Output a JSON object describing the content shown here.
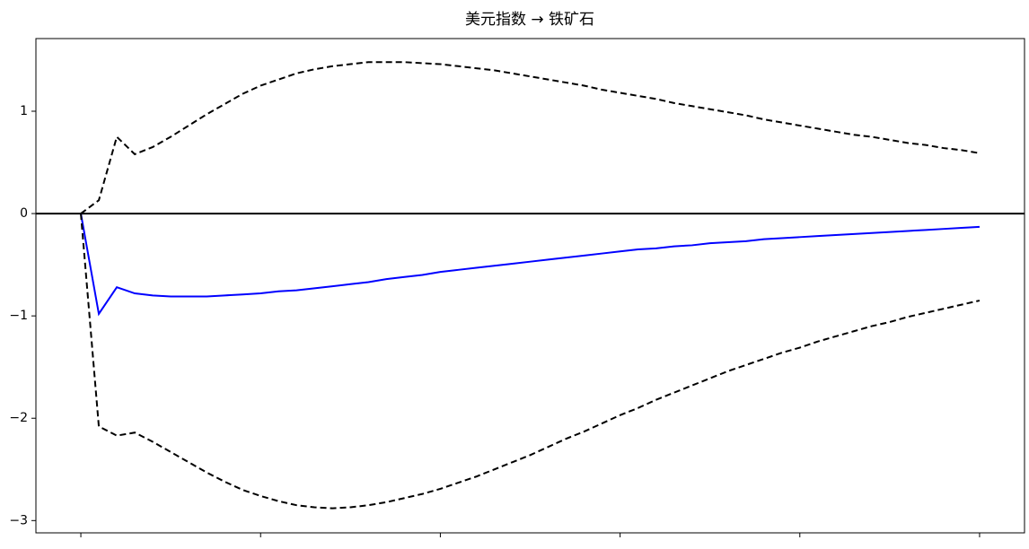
{
  "chart_data": {
    "type": "line",
    "title": "美元指数 → 铁矿石",
    "x": [
      0,
      1,
      2,
      3,
      4,
      5,
      6,
      7,
      8,
      9,
      10,
      11,
      12,
      13,
      14,
      15,
      16,
      17,
      18,
      19,
      20,
      21,
      22,
      23,
      24,
      25,
      26,
      27,
      28,
      29,
      30,
      31,
      32,
      33,
      34,
      35,
      36,
      37,
      38,
      39,
      40,
      41,
      42,
      43,
      44,
      45,
      46,
      47,
      48,
      49,
      50
    ],
    "series": [
      {
        "color": "#0000ff",
        "dashed": false,
        "values": [
          0,
          -0.98,
          -0.72,
          -0.78,
          -0.8,
          -0.81,
          -0.81,
          -0.81,
          -0.8,
          -0.79,
          -0.78,
          -0.76,
          -0.75,
          -0.73,
          -0.71,
          -0.69,
          -0.67,
          -0.64,
          -0.62,
          -0.6,
          -0.57,
          -0.55,
          -0.53,
          -0.51,
          -0.49,
          -0.47,
          -0.45,
          -0.43,
          -0.41,
          -0.39,
          -0.37,
          -0.35,
          -0.34,
          -0.32,
          -0.31,
          -0.29,
          -0.28,
          -0.27,
          -0.25,
          -0.24,
          -0.23,
          -0.22,
          -0.21,
          -0.2,
          -0.19,
          -0.18,
          -0.17,
          -0.16,
          -0.15,
          -0.14,
          -0.13
        ]
      },
      {
        "color": "#000000",
        "dashed": true,
        "values": [
          0,
          0.13,
          0.75,
          0.58,
          0.65,
          0.75,
          0.86,
          0.97,
          1.07,
          1.17,
          1.25,
          1.31,
          1.37,
          1.41,
          1.44,
          1.46,
          1.48,
          1.48,
          1.48,
          1.47,
          1.46,
          1.44,
          1.42,
          1.4,
          1.37,
          1.34,
          1.31,
          1.28,
          1.25,
          1.21,
          1.18,
          1.15,
          1.12,
          1.08,
          1.05,
          1.02,
          0.99,
          0.96,
          0.92,
          0.89,
          0.86,
          0.83,
          0.8,
          0.77,
          0.75,
          0.72,
          0.69,
          0.67,
          0.64,
          0.62,
          0.59
        ]
      },
      {
        "color": "#000000",
        "dashed": true,
        "values": [
          0,
          -2.08,
          -2.17,
          -2.14,
          -2.23,
          -2.33,
          -2.43,
          -2.53,
          -2.62,
          -2.7,
          -2.76,
          -2.81,
          -2.85,
          -2.87,
          -2.88,
          -2.87,
          -2.85,
          -2.82,
          -2.78,
          -2.74,
          -2.69,
          -2.63,
          -2.57,
          -2.5,
          -2.43,
          -2.36,
          -2.28,
          -2.2,
          -2.13,
          -2.05,
          -1.97,
          -1.9,
          -1.82,
          -1.75,
          -1.68,
          -1.61,
          -1.54,
          -1.48,
          -1.42,
          -1.36,
          -1.31,
          -1.25,
          -1.2,
          -1.15,
          -1.1,
          -1.06,
          -1.01,
          -0.97,
          -0.93,
          -0.89,
          -0.85
        ]
      }
    ],
    "xlim": [
      -2.5,
      52.5
    ],
    "xticks": [
      0,
      10,
      20,
      30,
      40,
      50
    ],
    "ylim": [
      -3.12,
      1.71
    ],
    "yticks": [
      {
        "value": -3,
        "label": "−3"
      },
      {
        "value": -2,
        "label": "−2"
      },
      {
        "value": -1,
        "label": "−1"
      },
      0,
      1
    ],
    "hline": 0,
    "hline_color": "#000000",
    "grid": false
  }
}
